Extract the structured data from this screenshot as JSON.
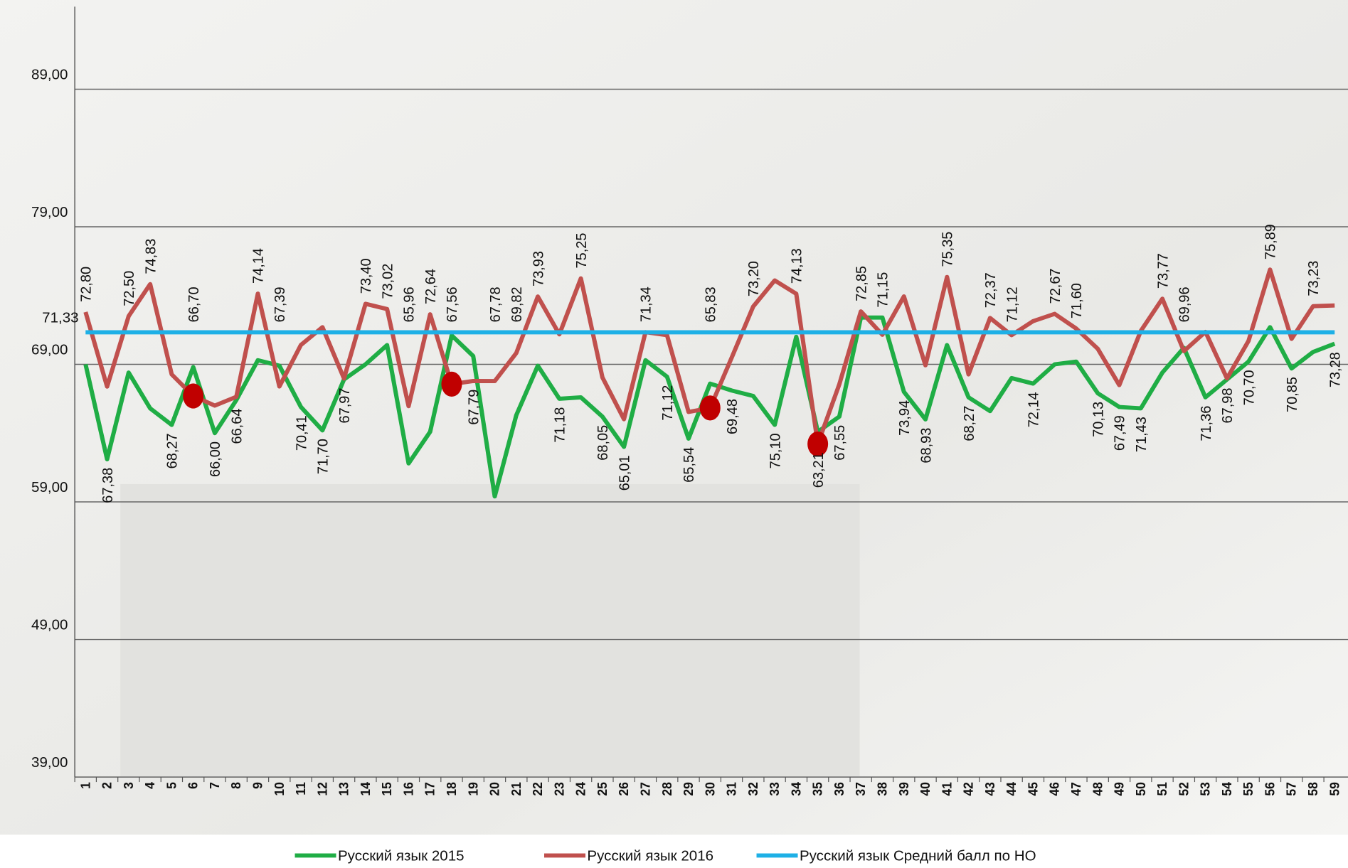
{
  "chart_data": {
    "type": "line",
    "categories": [
      "1",
      "2",
      "3",
      "4",
      "5",
      "6",
      "7",
      "8",
      "9",
      "10",
      "11",
      "12",
      "13",
      "14",
      "15",
      "16",
      "17",
      "18",
      "19",
      "20",
      "21",
      "22",
      "23",
      "24",
      "25",
      "26",
      "27",
      "28",
      "29",
      "30",
      "31",
      "32",
      "33",
      "34",
      "35",
      "36",
      "37",
      "38",
      "39",
      "40",
      "41",
      "42",
      "43",
      "44",
      "45",
      "46",
      "47",
      "48",
      "49",
      "50",
      "51",
      "52",
      "53",
      "54",
      "55",
      "56",
      "57",
      "58",
      "59"
    ],
    "series": [
      {
        "name": "Русский язык 2015",
        "color": "#1fad45",
        "values": [
          69.0,
          62.1,
          68.4,
          65.8,
          64.6,
          68.8,
          64.0,
          66.4,
          69.3,
          68.9,
          65.9,
          64.2,
          67.9,
          69.0,
          70.4,
          61.8,
          64.1,
          71.1,
          69.6,
          59.4,
          65.3,
          68.9,
          66.5,
          66.6,
          65.2,
          63.0,
          69.3,
          68.1,
          63.6,
          67.6,
          67.1,
          66.7,
          64.6,
          71.0,
          64.1,
          65.2,
          72.4,
          72.4,
          67.0,
          65.0,
          70.4,
          66.6,
          65.6,
          68.0,
          67.6,
          69.0,
          69.2,
          66.9,
          65.9,
          65.8,
          68.4,
          70.2,
          66.6,
          67.9,
          69.2,
          71.7,
          68.7,
          69.9,
          70.5
        ]
      },
      {
        "name": "Русский язык 2016",
        "color": "#c0504d",
        "values": [
          72.8,
          67.38,
          72.5,
          74.83,
          68.27,
          66.7,
          66.0,
          66.64,
          74.14,
          67.39,
          70.41,
          71.7,
          67.97,
          73.4,
          73.02,
          65.96,
          72.64,
          67.56,
          67.79,
          67.78,
          69.82,
          73.93,
          71.18,
          75.25,
          68.05,
          65.01,
          71.34,
          71.12,
          65.54,
          65.83,
          69.48,
          73.2,
          75.1,
          74.13,
          63.21,
          67.55,
          72.85,
          71.15,
          73.94,
          68.93,
          75.35,
          68.27,
          72.37,
          71.12,
          72.14,
          72.67,
          71.6,
          70.13,
          67.49,
          71.43,
          73.77,
          69.96,
          71.36,
          67.98,
          70.7,
          75.89,
          70.85,
          73.23,
          73.28
        ],
        "value_labels": [
          "72,80",
          "67,38",
          "72,50",
          "74,83",
          "68,27",
          "66,70",
          "66,00",
          "66,64",
          "74,14",
          "67,39",
          "70,41",
          "71,70",
          "67,97",
          "73,40",
          "73,02",
          "65,96",
          "72,64",
          "67,56",
          "67,79",
          "67,78",
          "69,82",
          "73,93",
          "71,18",
          "75,25",
          "68,05",
          "65,01",
          "71,34",
          "71,12",
          "65,54",
          "65,83",
          "69,48",
          "73,20",
          "75,10",
          "74,13",
          "63,21",
          "67,55",
          "72,85",
          "71,15",
          "73,94",
          "68,93",
          "75,35",
          "68,27",
          "72,37",
          "71,12",
          "72,14",
          "72,67",
          "71,60",
          "70,13",
          "67,49",
          "71,43",
          "73,77",
          "69,96",
          "71,36",
          "67,98",
          "70,70",
          "75,89",
          "70,85",
          "73,23",
          "73,28"
        ],
        "highlight_categories": [
          "6",
          "18",
          "30",
          "35"
        ],
        "highlight_color": "#c00000"
      },
      {
        "name": "Русский язык Средний балл по НО",
        "color": "#1eb0e6",
        "values": [
          71.33,
          71.33,
          71.33,
          71.33,
          71.33,
          71.33,
          71.33,
          71.33,
          71.33,
          71.33,
          71.33,
          71.33,
          71.33,
          71.33,
          71.33,
          71.33,
          71.33,
          71.33,
          71.33,
          71.33,
          71.33,
          71.33,
          71.33,
          71.33,
          71.33,
          71.33,
          71.33,
          71.33,
          71.33,
          71.33,
          71.33,
          71.33,
          71.33,
          71.33,
          71.33,
          71.33,
          71.33,
          71.33,
          71.33,
          71.33,
          71.33,
          71.33,
          71.33,
          71.33,
          71.33,
          71.33,
          71.33,
          71.33,
          71.33,
          71.33,
          71.33,
          71.33,
          71.33,
          71.33,
          71.33,
          71.33,
          71.33,
          71.33,
          71.33
        ],
        "value_labels": [
          "71,33",
          null,
          null,
          null,
          null,
          null,
          null,
          null,
          null,
          null,
          null,
          null,
          null,
          null,
          null,
          null,
          null,
          null,
          null,
          null,
          null,
          null,
          null,
          null,
          null,
          null,
          null,
          null,
          null,
          null,
          null,
          null,
          null,
          null,
          null,
          null,
          null,
          null,
          null,
          null,
          null,
          null,
          null,
          null,
          null,
          null,
          null,
          null,
          null,
          null,
          null,
          null,
          null,
          null,
          null,
          null,
          null,
          null,
          null
        ]
      }
    ],
    "ylim": [
      39,
      95
    ],
    "yticks": [
      {
        "value": 39,
        "label": "39,00"
      },
      {
        "value": 49,
        "label": "49,00"
      },
      {
        "value": 59,
        "label": "59,00"
      },
      {
        "value": 69,
        "label": "69,00"
      },
      {
        "value": 79,
        "label": "79,00"
      },
      {
        "value": 89,
        "label": "89,00"
      }
    ],
    "grid": true
  }
}
